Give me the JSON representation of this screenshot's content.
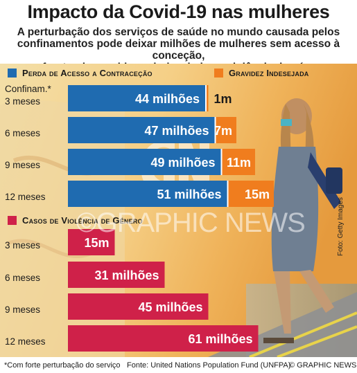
{
  "header": {
    "title": "Impacto da Covid-19 nas mulheres",
    "subtitle_lines": [
      "A perturbação dos serviços de saúde no mundo causada pelos",
      "confinamentos pode deixar milhões de mulheres sem acesso à conceção,",
      "enfrentando gravidezes indesejadas e violência de género"
    ]
  },
  "legend": {
    "contraception": "Perda de Acesso a Contraceção",
    "pregnancy": "Gravidez Indesejada",
    "violence": "Casos de Violência de Género"
  },
  "labels": {
    "lockdown": "Confinam.*"
  },
  "colors": {
    "contraception": "#1f6bb0",
    "pregnancy": "#f07d1e",
    "violence": "#cf2149"
  },
  "chart_data": [
    {
      "type": "bar",
      "orientation": "horizontal",
      "stacked": true,
      "categories": [
        "3 meses",
        "6 meses",
        "9 meses",
        "12 meses"
      ],
      "series": [
        {
          "name": "Perda de Acesso a Contraceção",
          "values": [
            44,
            47,
            49,
            51
          ],
          "labels": [
            "44 milhões",
            "47 milhões",
            "49 milhões",
            "51 milhões"
          ]
        },
        {
          "name": "Gravidez Indesejada",
          "values": [
            1,
            7,
            11,
            15
          ],
          "labels": [
            "1m",
            "7m",
            "11m",
            "15m"
          ]
        }
      ],
      "unit": "milhões"
    },
    {
      "type": "bar",
      "orientation": "horizontal",
      "categories": [
        "3 meses",
        "6 meses",
        "9 meses",
        "12 meses"
      ],
      "series": [
        {
          "name": "Casos de Violência de Género",
          "values": [
            15,
            31,
            45,
            61
          ],
          "labels": [
            "15m",
            "31 milhões",
            "45 milhões",
            "61 milhões"
          ]
        }
      ],
      "unit": "milhões"
    }
  ],
  "watermark": "©GRAPHIC NEWS",
  "photo_credit": "Foto: Getty Images",
  "footer": {
    "note": "*Com forte perturbação do serviço",
    "source": "Fonte: United Nations Population Fund (UNFPA)",
    "copyright": "© GRAPHIC NEWS"
  }
}
